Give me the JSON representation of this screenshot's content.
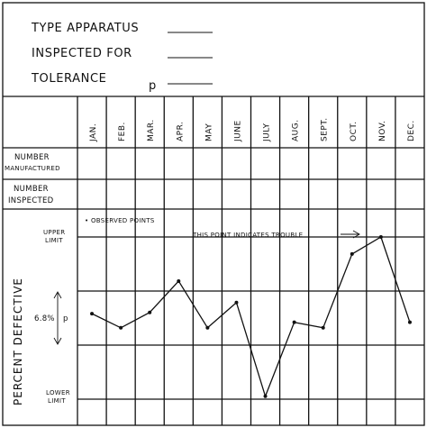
{
  "header": {
    "line1": "TYPE APPARATUS",
    "line2": "INSPECTED FOR",
    "line3": "TOLERANCE",
    "line3_symbol": "p"
  },
  "rows": {
    "number_manufactured": [
      "NUMBER",
      "MANUFACTURED"
    ],
    "number_inspected": [
      "NUMBER",
      "INSPECTED"
    ]
  },
  "annotations": {
    "observed_points": "• OBSERVED POINTS",
    "trouble": "THIS POINT INDICATES TROUBLE"
  },
  "y_labels": {
    "upper_limit": [
      "UPPER",
      "LIMIT"
    ],
    "lower_limit": [
      "LOWER",
      "LIMIT"
    ],
    "center_value": "6.8%",
    "center_symbol": "p",
    "axis_title": "PERCENT DEFECTIVE"
  },
  "chart_data": {
    "type": "line",
    "categories": [
      "JAN.",
      "FEB.",
      "MAR.",
      "APR.",
      "MAY",
      "JUNE",
      "JULY",
      "AUG.",
      "SEPT.",
      "OCT.",
      "NOV.",
      "DEC."
    ],
    "upper_limit": 1.0,
    "center": 0.5,
    "lower_limit": 0.0,
    "values": [
      0.527,
      0.44,
      0.535,
      0.728,
      0.44,
      0.596,
      0.018,
      0.474,
      0.44,
      0.895,
      1.0,
      0.474
    ],
    "trouble_index": 10
  }
}
